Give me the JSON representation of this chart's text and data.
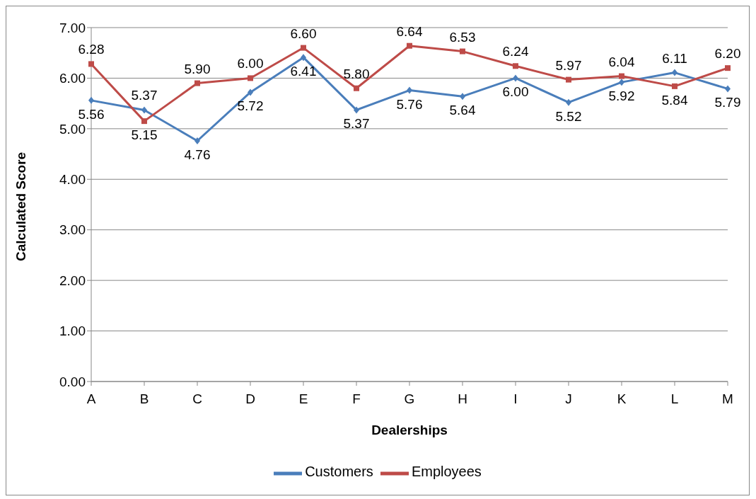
{
  "chart_data": {
    "type": "line",
    "xlabel": "Dealerships",
    "ylabel": "Calculated Score",
    "categories": [
      "A",
      "B",
      "C",
      "D",
      "E",
      "F",
      "G",
      "H",
      "I",
      "J",
      "K",
      "L",
      "M"
    ],
    "series": [
      {
        "name": "Customers",
        "color": "#4a7ebb",
        "marker": "diamond",
        "values": [
          5.56,
          5.37,
          4.76,
          5.72,
          6.41,
          5.37,
          5.76,
          5.64,
          6.0,
          5.52,
          5.92,
          6.11,
          5.79
        ],
        "value_labels": [
          "5.56",
          "5.37",
          "4.76",
          "5.72",
          "6.41",
          "5.37",
          "5.76",
          "5.64",
          "6.00",
          "5.52",
          "5.92",
          "6.11",
          "5.79"
        ]
      },
      {
        "name": "Employees",
        "color": "#be4b48",
        "marker": "square",
        "values": [
          6.28,
          5.15,
          5.9,
          6.0,
          6.6,
          5.8,
          6.64,
          6.53,
          6.24,
          5.97,
          6.04,
          5.84,
          6.2
        ],
        "value_labels": [
          "6.28",
          "5.15",
          "5.90",
          "6.00",
          "6.60",
          "5.80",
          "6.64",
          "6.53",
          "6.24",
          "5.97",
          "6.04",
          "5.84",
          "6.20"
        ]
      }
    ],
    "ylim": [
      0,
      7
    ],
    "yticks": [
      {
        "value": 0,
        "label": "0.00"
      },
      {
        "value": 1,
        "label": "1.00"
      },
      {
        "value": 2,
        "label": "2.00"
      },
      {
        "value": 3,
        "label": "3.00"
      },
      {
        "value": 4,
        "label": "4.00"
      },
      {
        "value": 5,
        "label": "5.00"
      },
      {
        "value": 6,
        "label": "6.00"
      },
      {
        "value": 7,
        "label": "7.00"
      }
    ],
    "grid": "y",
    "legend": "bottom",
    "line_style": "solid"
  }
}
